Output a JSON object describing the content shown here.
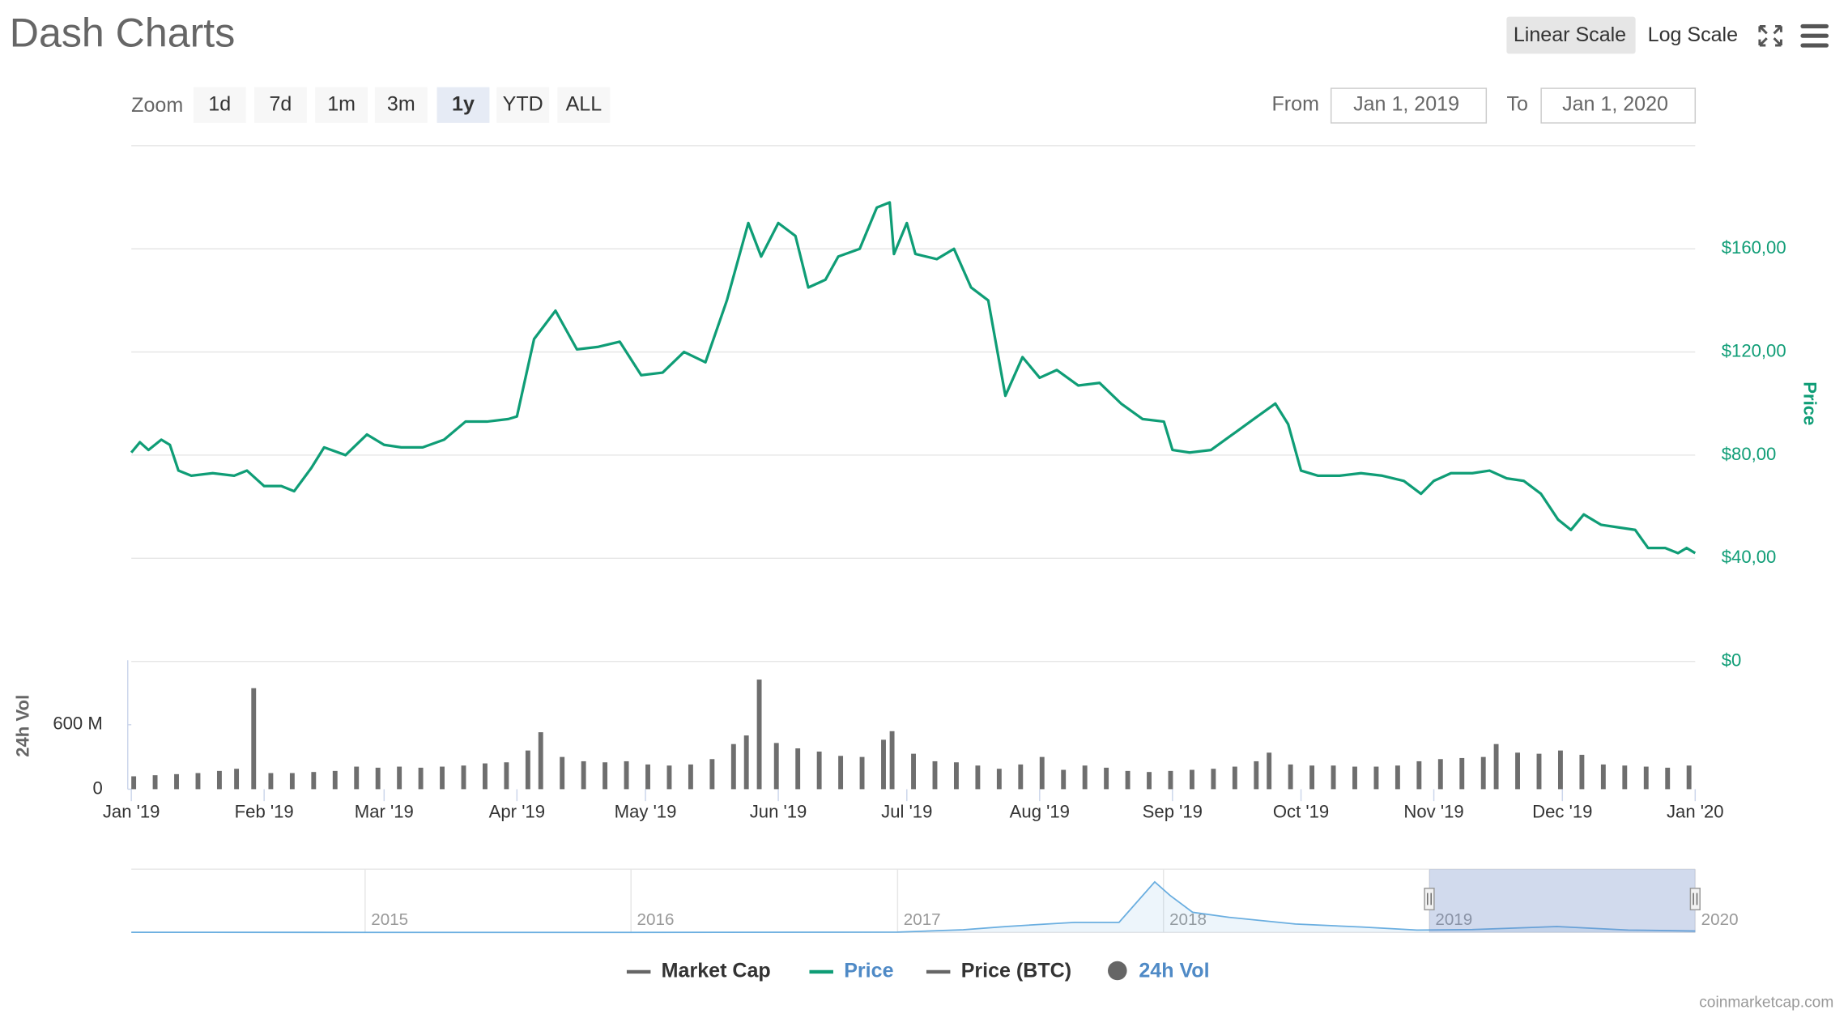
{
  "header": {
    "title": "Dash Charts"
  },
  "controls": {
    "scale_buttons": [
      "Linear Scale",
      "Log Scale"
    ],
    "active_scale_index": 0,
    "zoom_label": "Zoom",
    "zoom_buttons": [
      "1d",
      "7d",
      "1m",
      "3m",
      "1y",
      "YTD",
      "ALL"
    ],
    "active_zoom_index": 4,
    "from_label": "From",
    "from": "Jan 1, 2019",
    "to_label": "To",
    "to": "Jan 1, 2020"
  },
  "chart_data": [
    {
      "type": "line",
      "x": [
        "2019-01-01",
        "2019-01-03",
        "2019-01-05",
        "2019-01-08",
        "2019-01-10",
        "2019-01-12",
        "2019-01-15",
        "2019-01-20",
        "2019-01-25",
        "2019-01-28",
        "2019-02-01",
        "2019-02-05",
        "2019-02-08",
        "2019-02-12",
        "2019-02-15",
        "2019-02-20",
        "2019-02-25",
        "2019-03-01",
        "2019-03-05",
        "2019-03-10",
        "2019-03-15",
        "2019-03-20",
        "2019-03-25",
        "2019-03-30",
        "2019-04-01",
        "2019-04-05",
        "2019-04-10",
        "2019-04-15",
        "2019-04-20",
        "2019-04-25",
        "2019-04-30",
        "2019-05-05",
        "2019-05-10",
        "2019-05-15",
        "2019-05-20",
        "2019-05-25",
        "2019-05-28",
        "2019-06-01",
        "2019-06-05",
        "2019-06-08",
        "2019-06-12",
        "2019-06-15",
        "2019-06-20",
        "2019-06-24",
        "2019-06-27",
        "2019-06-28",
        "2019-07-01",
        "2019-07-03",
        "2019-07-08",
        "2019-07-12",
        "2019-07-16",
        "2019-07-20",
        "2019-07-24",
        "2019-07-28",
        "2019-08-01",
        "2019-08-05",
        "2019-08-10",
        "2019-08-15",
        "2019-08-20",
        "2019-08-25",
        "2019-08-30",
        "2019-09-01",
        "2019-09-05",
        "2019-09-10",
        "2019-09-15",
        "2019-09-20",
        "2019-09-25",
        "2019-09-28",
        "2019-10-01",
        "2019-10-05",
        "2019-10-10",
        "2019-10-15",
        "2019-10-20",
        "2019-10-25",
        "2019-10-29",
        "2019-11-01",
        "2019-11-05",
        "2019-11-10",
        "2019-11-14",
        "2019-11-18",
        "2019-11-22",
        "2019-11-26",
        "2019-11-30",
        "2019-12-03",
        "2019-12-06",
        "2019-12-10",
        "2019-12-14",
        "2019-12-18",
        "2019-12-21",
        "2019-12-25",
        "2019-12-28",
        "2019-12-30",
        "2020-01-01"
      ],
      "series": [
        {
          "color": "#0f9d76",
          "values": [
            81,
            85,
            82,
            86,
            84,
            74,
            72,
            73,
            72,
            74,
            68,
            68,
            66,
            75,
            83,
            80,
            88,
            84,
            83,
            83,
            86,
            93,
            93,
            94,
            95,
            125,
            136,
            121,
            122,
            124,
            111,
            112,
            120,
            116,
            140,
            170,
            157,
            170,
            165,
            145,
            148,
            157,
            160,
            176,
            178,
            158,
            170,
            158,
            156,
            160,
            145,
            140,
            103,
            118,
            110,
            113,
            107,
            108,
            100,
            94,
            93,
            82,
            81,
            82,
            88,
            94,
            100,
            92,
            74,
            72,
            72,
            73,
            72,
            70,
            65,
            70,
            73,
            73,
            74,
            71,
            70,
            65,
            55,
            51,
            57,
            53,
            52,
            51,
            44,
            44,
            42,
            44,
            42
          ]
        }
      ],
      "xlim": [
        "2019-01-01",
        "2020-01-01"
      ],
      "ylim": [
        0,
        200
      ],
      "yticks": [
        {
          "value": 0,
          "label": "$0"
        },
        {
          "value": 40,
          "label": "$40,00"
        },
        {
          "value": 80,
          "label": "$80,00"
        },
        {
          "value": 120,
          "label": "$120,00"
        },
        {
          "value": 160,
          "label": "$160,00"
        }
      ],
      "ylabel": "Price",
      "grid": true
    },
    {
      "type": "bar",
      "x": [
        "2019-01-01",
        "2019-01-06",
        "2019-01-11",
        "2019-01-16",
        "2019-01-21",
        "2019-01-25",
        "2019-01-29",
        "2019-02-02",
        "2019-02-07",
        "2019-02-12",
        "2019-02-17",
        "2019-02-22",
        "2019-02-27",
        "2019-03-04",
        "2019-03-09",
        "2019-03-14",
        "2019-03-19",
        "2019-03-24",
        "2019-03-29",
        "2019-04-03",
        "2019-04-06",
        "2019-04-11",
        "2019-04-16",
        "2019-04-21",
        "2019-04-26",
        "2019-05-01",
        "2019-05-06",
        "2019-05-11",
        "2019-05-16",
        "2019-05-21",
        "2019-05-24",
        "2019-05-27",
        "2019-05-31",
        "2019-06-05",
        "2019-06-10",
        "2019-06-15",
        "2019-06-20",
        "2019-06-25",
        "2019-06-27",
        "2019-07-02",
        "2019-07-07",
        "2019-07-12",
        "2019-07-17",
        "2019-07-22",
        "2019-07-27",
        "2019-08-01",
        "2019-08-06",
        "2019-08-11",
        "2019-08-16",
        "2019-08-21",
        "2019-08-26",
        "2019-08-31",
        "2019-09-05",
        "2019-09-10",
        "2019-09-15",
        "2019-09-20",
        "2019-09-23",
        "2019-09-28",
        "2019-10-03",
        "2019-10-08",
        "2019-10-13",
        "2019-10-18",
        "2019-10-23",
        "2019-10-28",
        "2019-11-02",
        "2019-11-07",
        "2019-11-12",
        "2019-11-15",
        "2019-11-20",
        "2019-11-25",
        "2019-11-30",
        "2019-12-05",
        "2019-12-10",
        "2019-12-15",
        "2019-12-20",
        "2019-12-25",
        "2019-12-30"
      ],
      "series": [
        {
          "color": "#6e6e6e",
          "values": [
            120000000,
            130000000,
            140000000,
            150000000,
            170000000,
            190000000,
            940000000,
            150000000,
            150000000,
            160000000,
            170000000,
            210000000,
            200000000,
            210000000,
            200000000,
            210000000,
            220000000,
            240000000,
            250000000,
            360000000,
            530000000,
            300000000,
            260000000,
            250000000,
            260000000,
            230000000,
            220000000,
            230000000,
            280000000,
            420000000,
            500000000,
            1020000000,
            430000000,
            380000000,
            350000000,
            310000000,
            300000000,
            460000000,
            540000000,
            330000000,
            260000000,
            250000000,
            220000000,
            190000000,
            230000000,
            300000000,
            180000000,
            220000000,
            200000000,
            170000000,
            160000000,
            170000000,
            180000000,
            190000000,
            210000000,
            260000000,
            340000000,
            230000000,
            220000000,
            220000000,
            210000000,
            210000000,
            220000000,
            260000000,
            280000000,
            290000000,
            300000000,
            420000000,
            340000000,
            330000000,
            360000000,
            320000000,
            230000000,
            220000000,
            210000000,
            200000000,
            220000000
          ]
        }
      ],
      "xlim": [
        "2019-01-01",
        "2020-01-01"
      ],
      "xticks": [
        {
          "value": "2019-01-01",
          "label": "Jan '19"
        },
        {
          "value": "2019-02-01",
          "label": "Feb '19"
        },
        {
          "value": "2019-03-01",
          "label": "Mar '19"
        },
        {
          "value": "2019-04-01",
          "label": "Apr '19"
        },
        {
          "value": "2019-05-01",
          "label": "May '19"
        },
        {
          "value": "2019-06-01",
          "label": "Jun '19"
        },
        {
          "value": "2019-07-01",
          "label": "Jul '19"
        },
        {
          "value": "2019-08-01",
          "label": "Aug '19"
        },
        {
          "value": "2019-09-01",
          "label": "Sep '19"
        },
        {
          "value": "2019-10-01",
          "label": "Oct '19"
        },
        {
          "value": "2019-11-01",
          "label": "Nov '19"
        },
        {
          "value": "2019-12-01",
          "label": "Dec '19"
        },
        {
          "value": "2020-01-01",
          "label": "Jan '20"
        }
      ],
      "ylim": [
        0,
        1200000000
      ],
      "yticks": [
        0,
        {
          "value": 600000000,
          "label": "600 M"
        }
      ],
      "ylabel": "24h Vol"
    },
    {
      "type": "area",
      "x": [
        "2014-02-14",
        "2015-01-01",
        "2016-01-01",
        "2017-01-01",
        "2017-04-01",
        "2017-06-01",
        "2017-09-01",
        "2017-11-01",
        "2017-12-20",
        "2018-01-10",
        "2018-02-10",
        "2018-04-01",
        "2018-07-01",
        "2018-10-01",
        "2018-12-15",
        "2019-03-01",
        "2019-06-25",
        "2019-10-01",
        "2020-01-01"
      ],
      "series": [
        {
          "color": "#6aaee0",
          "values": [
            4,
            3,
            3,
            11,
            80,
            180,
            300,
            300,
            1500,
            1100,
            600,
            450,
            250,
            160,
            70,
            85,
            175,
            72,
            42
          ]
        }
      ],
      "xlim": [
        "2014-02-14",
        "2020-01-01"
      ],
      "ylim": [
        0,
        1700
      ],
      "xticks": [
        {
          "value": "2015-01-01",
          "label": "2015"
        },
        {
          "value": "2016-01-01",
          "label": "2016"
        },
        {
          "value": "2017-01-01",
          "label": "2017"
        },
        {
          "value": "2018-01-01",
          "label": "2018"
        },
        {
          "value": "2019-01-01",
          "label": "2019"
        },
        {
          "value": "2020-01-01",
          "label": "2020"
        }
      ]
    }
  ],
  "legend": [
    {
      "name": "Market Cap",
      "color": "#666666",
      "text_color": "#333333"
    },
    {
      "name": "Price",
      "color": "#0f9d76",
      "text_color": "#4f8ac6"
    },
    {
      "name": "Price (BTC)",
      "color": "#666666",
      "text_color": "#333333"
    },
    {
      "name": "24h Vol",
      "color": "#666666",
      "text_color": "#4f8ac6"
    }
  ],
  "credit": "coinmarketcap.com"
}
